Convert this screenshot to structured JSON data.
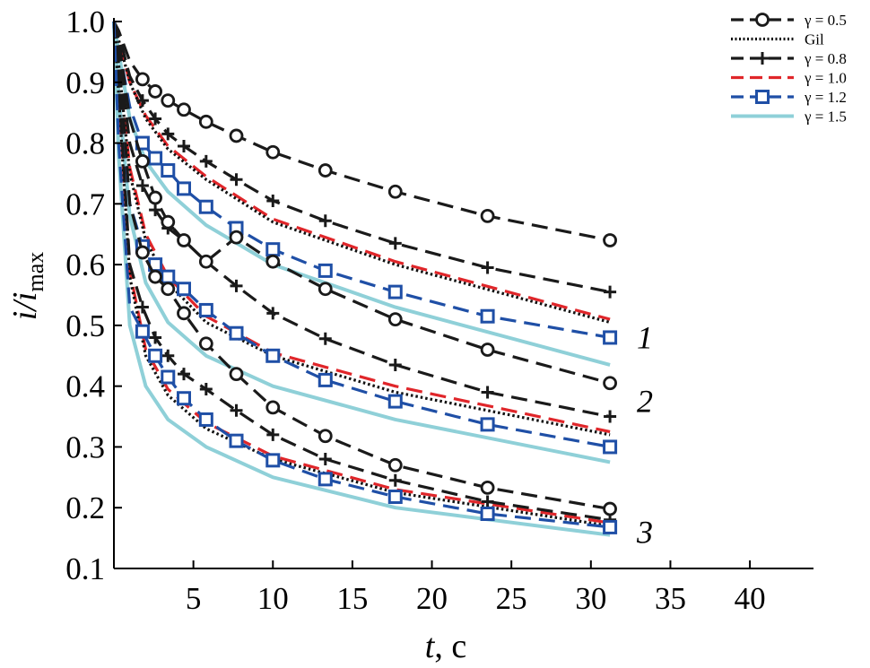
{
  "chart_data": {
    "type": "line",
    "xlabel_var": "t",
    "xlabel_unit": ", c",
    "ylabel_var": "i/i",
    "ylabel_sub": "max",
    "xlim": [
      0,
      44
    ],
    "ylim": [
      0.1,
      1.0
    ],
    "xticks": [
      5,
      10,
      15,
      20,
      25,
      30,
      35,
      40
    ],
    "xtick_labels": [
      "5",
      "10",
      "15",
      "20",
      "25",
      "30",
      "35",
      "40"
    ],
    "yticks": [
      0.1,
      0.2,
      0.3,
      0.4,
      0.5,
      0.6,
      0.7,
      0.8,
      0.9,
      1.0
    ],
    "ytick_labels": [
      "0.1",
      "0.2",
      "0.3",
      "0.4",
      "0.5",
      "0.6",
      "0.7",
      "0.8",
      "0.9",
      "1.0"
    ],
    "legend_position": "top-right",
    "legend": [
      {
        "key": "g05",
        "label": "γ = 0.5"
      },
      {
        "key": "gil",
        "label": "Gil"
      },
      {
        "key": "g08",
        "label": "γ = 0.8"
      },
      {
        "key": "g10",
        "label": "γ = 1.0"
      },
      {
        "key": "g12",
        "label": "γ = 1.2"
      },
      {
        "key": "g15",
        "label": "γ = 1.5"
      }
    ],
    "styles": {
      "g05": {
        "color": "#1a1a1a",
        "dash": "dash",
        "marker": "circle"
      },
      "gil": {
        "color": "#111111",
        "dash": "dot",
        "marker": "none"
      },
      "g08": {
        "color": "#1a1a1a",
        "dash": "dash",
        "marker": "plus"
      },
      "g10": {
        "color": "#e0262a",
        "dash": "dash",
        "marker": "none"
      },
      "g12": {
        "color": "#1f4fa6",
        "dash": "dash",
        "marker": "square"
      },
      "g15": {
        "color": "#8fd0d8",
        "dash": "solid",
        "marker": "none"
      }
    },
    "groups": [
      {
        "label": "1",
        "series": [
          {
            "key": "g05",
            "x": [
              0,
              0.3,
              1,
              1.8,
              2.6,
              3.4,
              4.4,
              5.8,
              7.7,
              10,
              13.3,
              17.7,
              23.5,
              31.2
            ],
            "y": [
              1.0,
              0.985,
              0.935,
              0.905,
              0.885,
              0.87,
              0.855,
              0.835,
              0.812,
              0.785,
              0.755,
              0.72,
              0.68,
              0.64
            ]
          },
          {
            "key": "gil",
            "x": [
              0,
              0.3,
              1,
              2,
              3.4,
              5.8,
              10,
              17.7,
              31.2
            ],
            "y": [
              1.0,
              0.97,
              0.9,
              0.84,
              0.79,
              0.74,
              0.67,
              0.6,
              0.505
            ]
          },
          {
            "key": "g08",
            "x": [
              0,
              0.3,
              1,
              1.8,
              2.6,
              3.4,
              4.4,
              5.8,
              7.7,
              10,
              13.3,
              17.7,
              23.5,
              31.2
            ],
            "y": [
              1.0,
              0.98,
              0.91,
              0.87,
              0.84,
              0.815,
              0.795,
              0.77,
              0.74,
              0.705,
              0.672,
              0.635,
              0.595,
              0.555
            ]
          },
          {
            "key": "g10",
            "x": [
              0,
              0.3,
              1,
              2,
              3.4,
              5.8,
              10,
              17.7,
              31.2
            ],
            "y": [
              1.0,
              0.97,
              0.9,
              0.845,
              0.795,
              0.745,
              0.675,
              0.605,
              0.51
            ]
          },
          {
            "key": "g12",
            "x": [
              0,
              0.3,
              1,
              1.8,
              2.6,
              3.4,
              4.4,
              5.8,
              7.7,
              10,
              13.3,
              17.7,
              23.5,
              31.2
            ],
            "y": [
              1.0,
              0.96,
              0.86,
              0.8,
              0.775,
              0.755,
              0.725,
              0.695,
              0.66,
              0.625,
              0.59,
              0.555,
              0.515,
              0.48
            ]
          },
          {
            "key": "g15",
            "x": [
              0,
              0.3,
              1,
              2,
              3.4,
              5.8,
              10,
              17.7,
              31.2
            ],
            "y": [
              1.0,
              0.95,
              0.84,
              0.77,
              0.72,
              0.665,
              0.6,
              0.53,
              0.435
            ]
          }
        ]
      },
      {
        "label": "2",
        "series": [
          {
            "key": "g05",
            "x": [
              0,
              0.3,
              1,
              1.8,
              2.6,
              3.4,
              4.4,
              5.8,
              7.7,
              10,
              13.3,
              17.7,
              23.5,
              31.2
            ],
            "y": [
              1.0,
              0.97,
              0.84,
              0.77,
              0.71,
              0.67,
              0.64,
              0.605,
              0.645,
              0.605,
              0.56,
              0.51,
              0.46,
              0.405
            ]
          },
          {
            "key": "gil",
            "x": [
              0,
              0.3,
              1,
              2,
              3.4,
              5.8,
              10,
              17.7,
              31.2
            ],
            "y": [
              1.0,
              0.93,
              0.75,
              0.64,
              0.57,
              0.505,
              0.45,
              0.39,
              0.32
            ]
          },
          {
            "key": "g08",
            "x": [
              0,
              0.3,
              1,
              1.8,
              2.6,
              3.4,
              4.4,
              5.8,
              7.7,
              10,
              13.3,
              17.7,
              23.5,
              31.2
            ],
            "y": [
              1.0,
              0.95,
              0.8,
              0.73,
              0.69,
              0.66,
              0.64,
              0.605,
              0.565,
              0.52,
              0.478,
              0.435,
              0.39,
              0.35
            ]
          },
          {
            "key": "g10",
            "x": [
              0,
              0.3,
              1,
              2,
              3.4,
              5.8,
              10,
              17.7,
              31.2
            ],
            "y": [
              1.0,
              0.93,
              0.76,
              0.65,
              0.58,
              0.515,
              0.455,
              0.4,
              0.325
            ]
          },
          {
            "key": "g12",
            "x": [
              0,
              0.3,
              1,
              1.8,
              2.6,
              3.4,
              4.4,
              5.8,
              7.7,
              10,
              13.3,
              17.7,
              23.5,
              31.2
            ],
            "y": [
              1.0,
              0.9,
              0.7,
              0.63,
              0.6,
              0.58,
              0.56,
              0.525,
              0.487,
              0.45,
              0.41,
              0.375,
              0.337,
              0.3
            ]
          },
          {
            "key": "g15",
            "x": [
              0,
              0.3,
              1,
              2,
              3.4,
              5.8,
              10,
              17.7,
              31.2
            ],
            "y": [
              1.0,
              0.88,
              0.68,
              0.57,
              0.505,
              0.45,
              0.4,
              0.345,
              0.275
            ]
          }
        ]
      },
      {
        "label": "3",
        "series": [
          {
            "key": "g05",
            "x": [
              0,
              0.3,
              1,
              1.8,
              2.6,
              3.4,
              4.4,
              5.8,
              7.7,
              10,
              13.3,
              17.7,
              23.5,
              31.2
            ],
            "y": [
              1.0,
              0.95,
              0.7,
              0.62,
              0.58,
              0.56,
              0.52,
              0.47,
              0.42,
              0.365,
              0.318,
              0.27,
              0.233,
              0.198
            ]
          },
          {
            "key": "gil",
            "x": [
              0,
              0.3,
              1,
              2,
              3.4,
              5.8,
              10,
              17.7,
              31.2
            ],
            "y": [
              1.0,
              0.88,
              0.58,
              0.45,
              0.385,
              0.33,
              0.28,
              0.225,
              0.17
            ]
          },
          {
            "key": "g08",
            "x": [
              0,
              0.3,
              1,
              1.8,
              2.6,
              3.4,
              4.4,
              5.8,
              7.7,
              10,
              13.3,
              17.7,
              23.5,
              31.2
            ],
            "y": [
              1.0,
              0.9,
              0.6,
              0.53,
              0.48,
              0.45,
              0.42,
              0.395,
              0.36,
              0.32,
              0.28,
              0.245,
              0.21,
              0.18
            ]
          },
          {
            "key": "g10",
            "x": [
              0,
              0.3,
              1,
              2,
              3.4,
              5.8,
              10,
              17.7,
              31.2
            ],
            "y": [
              1.0,
              0.88,
              0.59,
              0.46,
              0.395,
              0.34,
              0.285,
              0.23,
              0.175
            ]
          },
          {
            "key": "g12",
            "x": [
              0,
              0.3,
              1,
              1.8,
              2.6,
              3.4,
              4.4,
              5.8,
              7.7,
              10,
              13.3,
              17.7,
              23.5,
              31.2
            ],
            "y": [
              1.0,
              0.8,
              0.53,
              0.49,
              0.45,
              0.415,
              0.38,
              0.345,
              0.31,
              0.278,
              0.247,
              0.218,
              0.19,
              0.168
            ]
          },
          {
            "key": "g15",
            "x": [
              0,
              0.3,
              1,
              2,
              3.4,
              5.8,
              10,
              17.7,
              31.2
            ],
            "y": [
              1.0,
              0.78,
              0.5,
              0.4,
              0.345,
              0.3,
              0.25,
              0.2,
              0.155
            ]
          }
        ]
      }
    ]
  }
}
